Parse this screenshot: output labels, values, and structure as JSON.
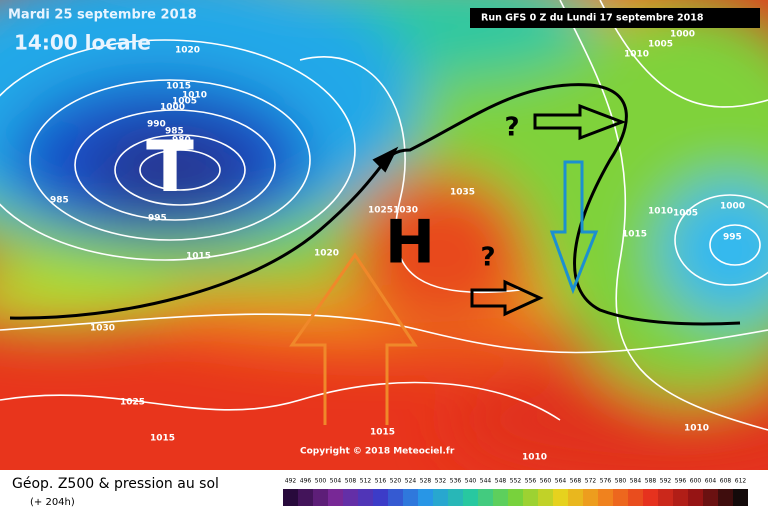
{
  "header": {
    "date": "Mardi 25 septembre 2018",
    "time": "14:00 locale",
    "run": "Run GFS 0 Z du Lundi 17 septembre 2018"
  },
  "map": {
    "symbols": [
      "T",
      "H",
      "?",
      "?"
    ],
    "isobar_labels": [
      "1020",
      "1015",
      "1010",
      "1005",
      "1000",
      "990",
      "985",
      "980",
      "985",
      "995",
      "1015",
      "1020",
      "1025",
      "1030",
      "1035",
      "1030",
      "1025",
      "1015",
      "1015",
      "1010",
      "1010",
      "1015",
      "1010",
      "1005",
      "1000",
      "995",
      "1000",
      "1005",
      "1010"
    ],
    "copyright": "Copyright © 2018 Meteociel.fr"
  },
  "footer": {
    "title": "Géop. Z500 & pression au sol",
    "lead": "(+ 204h)",
    "scale": [
      492,
      496,
      500,
      504,
      508,
      512,
      516,
      520,
      524,
      528,
      532,
      536,
      540,
      544,
      548,
      552,
      556,
      560,
      564,
      568,
      572,
      576,
      580,
      584,
      588,
      592,
      596,
      600,
      604,
      608,
      612
    ]
  }
}
